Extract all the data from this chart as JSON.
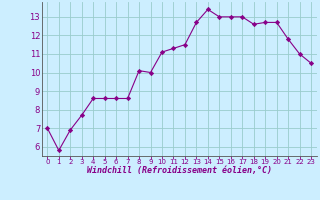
{
  "x": [
    0,
    1,
    2,
    3,
    4,
    5,
    6,
    7,
    8,
    9,
    10,
    11,
    12,
    13,
    14,
    15,
    16,
    17,
    18,
    19,
    20,
    21,
    22,
    23
  ],
  "y": [
    7.0,
    5.8,
    6.9,
    7.7,
    8.6,
    8.6,
    8.6,
    8.6,
    10.1,
    10.0,
    11.1,
    11.3,
    11.5,
    12.7,
    13.4,
    13.0,
    13.0,
    13.0,
    12.6,
    12.7,
    12.7,
    11.8,
    11.0,
    10.5
  ],
  "line_color": "#880088",
  "marker": "D",
  "marker_size": 2.2,
  "bg_color": "#cceeff",
  "grid_color": "#99cccc",
  "xlabel": "Windchill (Refroidissement éolien,°C)",
  "tick_color": "#880088",
  "ylabel_ticks": [
    6,
    7,
    8,
    9,
    10,
    11,
    12,
    13
  ],
  "xtick_labels": [
    "0",
    "1",
    "2",
    "3",
    "4",
    "5",
    "6",
    "7",
    "8",
    "9",
    "10",
    "11",
    "12",
    "13",
    "14",
    "15",
    "16",
    "17",
    "18",
    "19",
    "20",
    "21",
    "22",
    "23"
  ],
  "ylim": [
    5.5,
    13.8
  ],
  "xlim": [
    -0.5,
    23.5
  ]
}
